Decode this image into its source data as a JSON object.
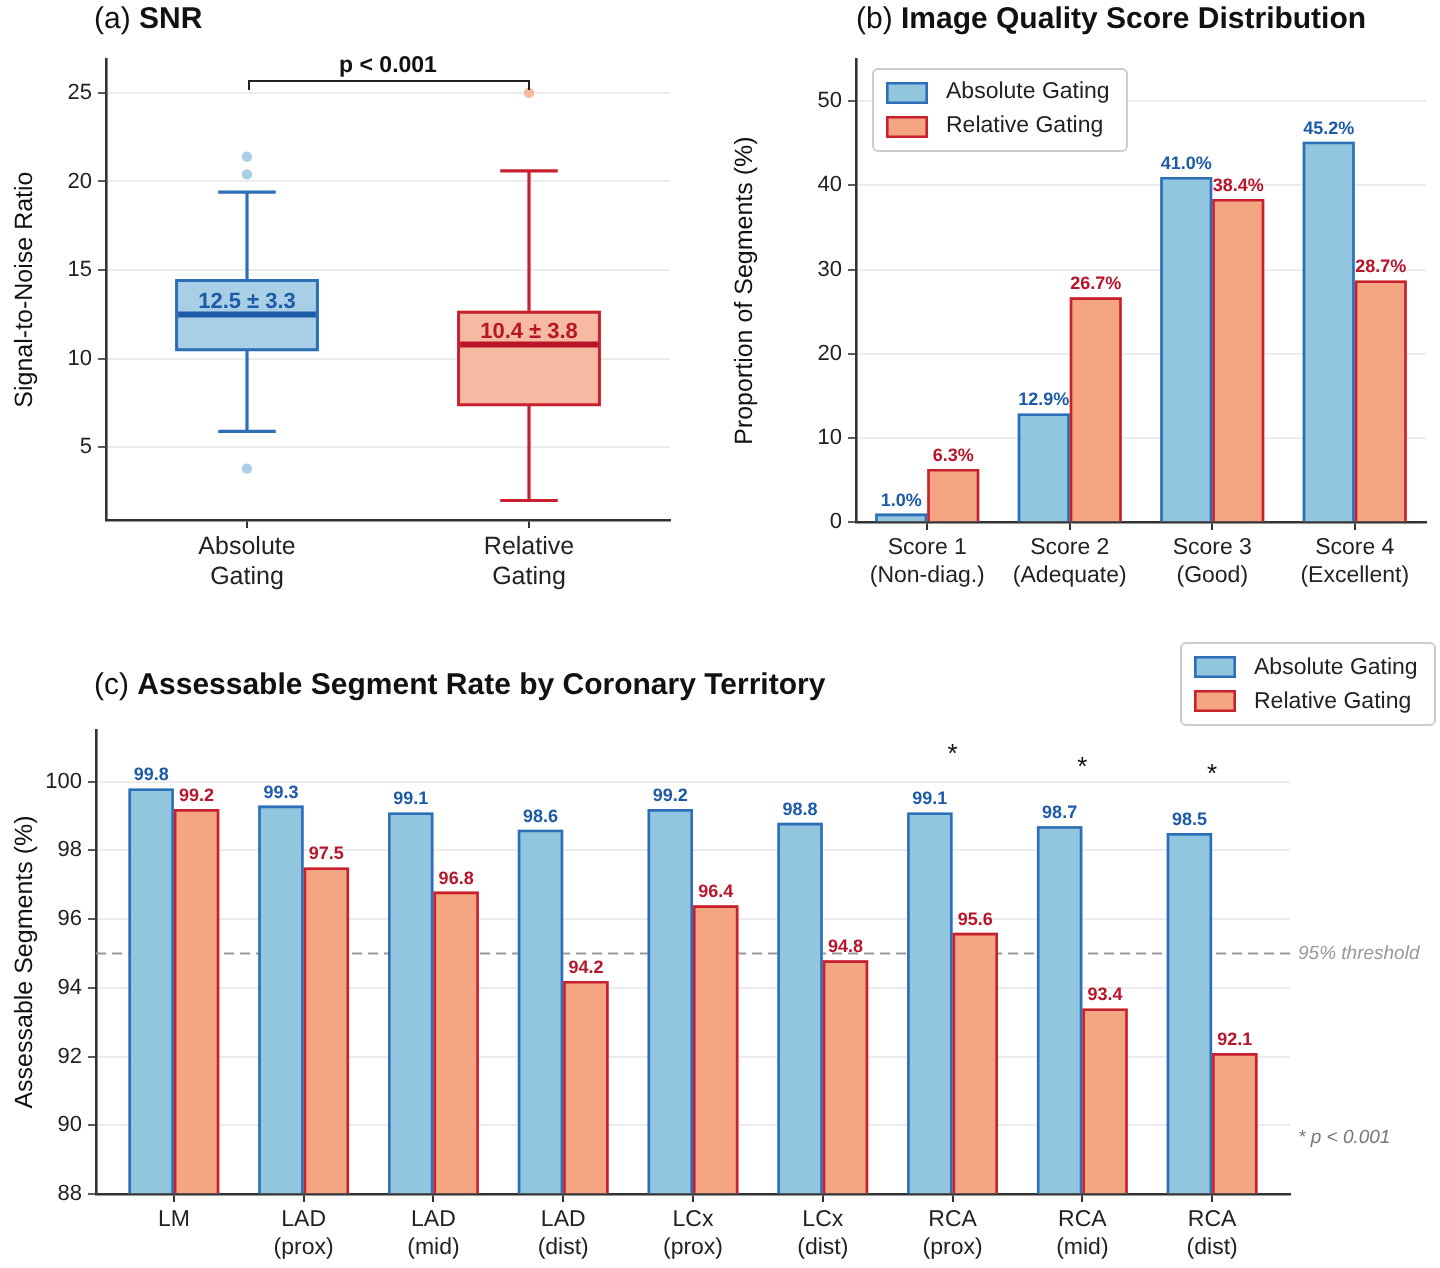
{
  "chart_data": [
    {
      "type": "box",
      "title": "(a) SNR",
      "ylabel": "Signal-to-Noise Ratio",
      "categories": [
        "Absolute\nGating",
        "Relative\nGating"
      ],
      "colors": [
        "#a9cfe6",
        "#f6b9a1"
      ],
      "boxes": [
        {
          "low": 5.9,
          "q1": 10.5,
          "median": 12.5,
          "q3": 14.5,
          "high": 19.4,
          "outliers": [
            21.4,
            20.4,
            3.8
          ]
        },
        {
          "low": 2.0,
          "q1": 7.4,
          "median": 10.8,
          "q3": 12.7,
          "high": 20.6,
          "outliers": [
            25.0
          ]
        }
      ],
      "ylim": [
        0.9,
        26.9
      ],
      "yticks": [
        5,
        10,
        15,
        20,
        25
      ],
      "grid": "y",
      "annotations": [
        "p < 0.001",
        {
          "text": "12.5 ± 3.3",
          "x": "Absolute\nGating",
          "y": 13.2
        },
        {
          "text": "10.4 ± 3.8",
          "x": "Relative\nGating",
          "y": 11.5
        }
      ]
    },
    {
      "type": "bar",
      "title": "(b) Image Quality Score Distribution",
      "ylabel": "Proportion of Segments (%)",
      "categories": [
        "Score 1\n(Non-diag.)",
        "Score 2\n(Adequate)",
        "Score 3\n(Good)",
        "Score 4\n(Excellent)"
      ],
      "series": [
        {
          "name": "Absolute Gating",
          "color": "#92c5de",
          "values": [
            1.0,
            12.9,
            41.0,
            45.2
          ],
          "value_labels": [
            "1.0%",
            "12.9%",
            "41.0%",
            "45.2%"
          ]
        },
        {
          "name": "Relative Gating",
          "color": "#f4a582",
          "values": [
            6.3,
            26.7,
            38.4,
            28.7
          ],
          "value_labels": [
            "6.3%",
            "26.7%",
            "38.4%",
            "28.7%"
          ]
        }
      ],
      "ylim": [
        0,
        55
      ],
      "yticks": [
        0,
        10,
        20,
        30,
        40,
        50
      ],
      "grid": "y",
      "legend": "top left"
    },
    {
      "type": "bar",
      "title": "(c) Assessable Segment Rate by Coronary Territory",
      "ylabel": "Assessable Segments (%)",
      "categories": [
        "LM",
        "LAD\n(prox)",
        "LAD\n(mid)",
        "LAD\n(dist)",
        "LCx\n(prox)",
        "LCx\n(dist)",
        "RCA\n(prox)",
        "RCA\n(mid)",
        "RCA\n(dist)"
      ],
      "series": [
        {
          "name": "Absolute Gating",
          "color": "#92c5de",
          "values": [
            99.8,
            99.3,
            99.1,
            98.6,
            99.2,
            98.8,
            99.1,
            98.7,
            98.5
          ]
        },
        {
          "name": "Relative Gating",
          "color": "#f4a582",
          "values": [
            99.2,
            97.5,
            96.8,
            94.2,
            96.4,
            94.8,
            95.6,
            93.4,
            92.1
          ]
        }
      ],
      "ylim": [
        88,
        101.5
      ],
      "yticks": [
        88,
        90,
        92,
        94,
        96,
        98,
        100
      ],
      "grid": "y",
      "legend": "top right",
      "data_labels": true,
      "ref_lines": [
        {
          "axis": "y",
          "value": 95,
          "label": "95% threshold",
          "color": "#999999",
          "line_style": "dashed"
        }
      ],
      "annotations": [
        {
          "text": "*",
          "x": "RCA\n(prox)",
          "y": 99.1
        },
        {
          "text": "*",
          "x": "RCA\n(mid)",
          "y": 98.7
        },
        {
          "text": "*",
          "x": "RCA\n(dist)",
          "y": 98.5
        },
        "* p < 0.001"
      ]
    }
  ]
}
